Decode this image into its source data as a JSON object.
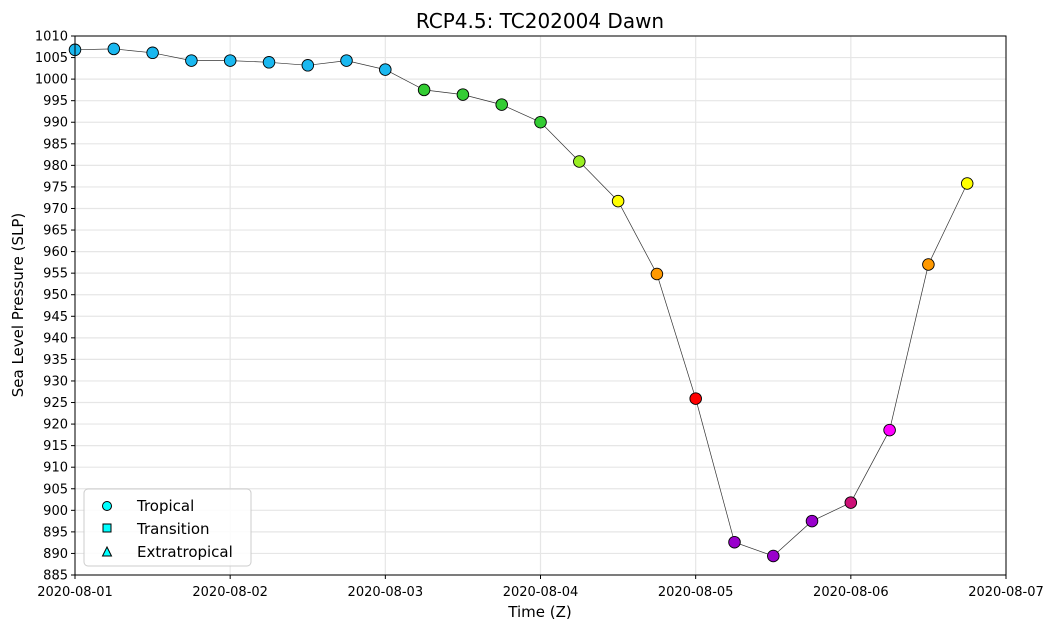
{
  "chart_data": {
    "type": "scatter",
    "title": "RCP4.5: TC202004 Dawn",
    "xlabel": "Time (Z)",
    "ylabel": "Sea Level Pressure (SLP)",
    "xlim": [
      "2020-08-01T00:00",
      "2020-08-07T00:00"
    ],
    "ylim": [
      885,
      1010
    ],
    "x_ticks": [
      "2020-08-01",
      "2020-08-02",
      "2020-08-03",
      "2020-08-04",
      "2020-08-05",
      "2020-08-06",
      "2020-08-07"
    ],
    "y_ticks": [
      885,
      890,
      895,
      900,
      905,
      910,
      915,
      920,
      925,
      930,
      935,
      940,
      945,
      950,
      955,
      960,
      965,
      970,
      975,
      980,
      985,
      990,
      995,
      1000,
      1005,
      1010
    ],
    "grid": true,
    "legend_position": "bottom-left",
    "legend": [
      {
        "label": "Tropical",
        "marker": "circle"
      },
      {
        "label": "Transition",
        "marker": "square"
      },
      {
        "label": "Extratropical",
        "marker": "triangle"
      }
    ],
    "legend_color": "#00ffff",
    "line_color": "#333333",
    "points": [
      {
        "time": "2020-08-01T00:00",
        "slp": 1006.8,
        "color": "#1ab8f0"
      },
      {
        "time": "2020-08-01T06:00",
        "slp": 1007.0,
        "color": "#1ab8f0"
      },
      {
        "time": "2020-08-01T12:00",
        "slp": 1006.1,
        "color": "#1ab8f0"
      },
      {
        "time": "2020-08-01T18:00",
        "slp": 1004.3,
        "color": "#1ab8f0"
      },
      {
        "time": "2020-08-02T00:00",
        "slp": 1004.3,
        "color": "#1ab8f0"
      },
      {
        "time": "2020-08-02T06:00",
        "slp": 1003.9,
        "color": "#1ab8f0"
      },
      {
        "time": "2020-08-02T12:00",
        "slp": 1003.2,
        "color": "#1ab8f0"
      },
      {
        "time": "2020-08-02T18:00",
        "slp": 1004.3,
        "color": "#1ab8f0"
      },
      {
        "time": "2020-08-03T00:00",
        "slp": 1002.2,
        "color": "#1ab8f0"
      },
      {
        "time": "2020-08-03T06:00",
        "slp": 997.5,
        "color": "#33cc33"
      },
      {
        "time": "2020-08-03T12:00",
        "slp": 996.4,
        "color": "#33cc33"
      },
      {
        "time": "2020-08-03T18:00",
        "slp": 994.1,
        "color": "#33cc33"
      },
      {
        "time": "2020-08-04T00:00",
        "slp": 990.0,
        "color": "#33cc33"
      },
      {
        "time": "2020-08-04T06:00",
        "slp": 980.9,
        "color": "#99ee22"
      },
      {
        "time": "2020-08-04T12:00",
        "slp": 971.7,
        "color": "#ffff00"
      },
      {
        "time": "2020-08-04T18:00",
        "slp": 954.8,
        "color": "#ff9900"
      },
      {
        "time": "2020-08-05T00:00",
        "slp": 925.9,
        "color": "#ff0000"
      },
      {
        "time": "2020-08-05T06:00",
        "slp": 892.6,
        "color": "#9900cc"
      },
      {
        "time": "2020-08-05T12:00",
        "slp": 889.4,
        "color": "#9900cc"
      },
      {
        "time": "2020-08-05T18:00",
        "slp": 897.5,
        "color": "#9900cc"
      },
      {
        "time": "2020-08-06T00:00",
        "slp": 901.8,
        "color": "#cc1177"
      },
      {
        "time": "2020-08-06T06:00",
        "slp": 918.6,
        "color": "#ff00ff"
      },
      {
        "time": "2020-08-06T12:00",
        "slp": 957.0,
        "color": "#ff9900"
      },
      {
        "time": "2020-08-06T18:00",
        "slp": 975.8,
        "color": "#ffff00"
      }
    ]
  }
}
